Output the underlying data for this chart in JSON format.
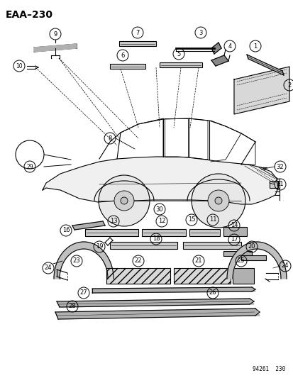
{
  "title": "EAA–230",
  "footer": "94261  230",
  "bg_color": "#ffffff",
  "title_fontsize": 10,
  "fig_width": 4.14,
  "fig_height": 5.33,
  "dpi": 100
}
